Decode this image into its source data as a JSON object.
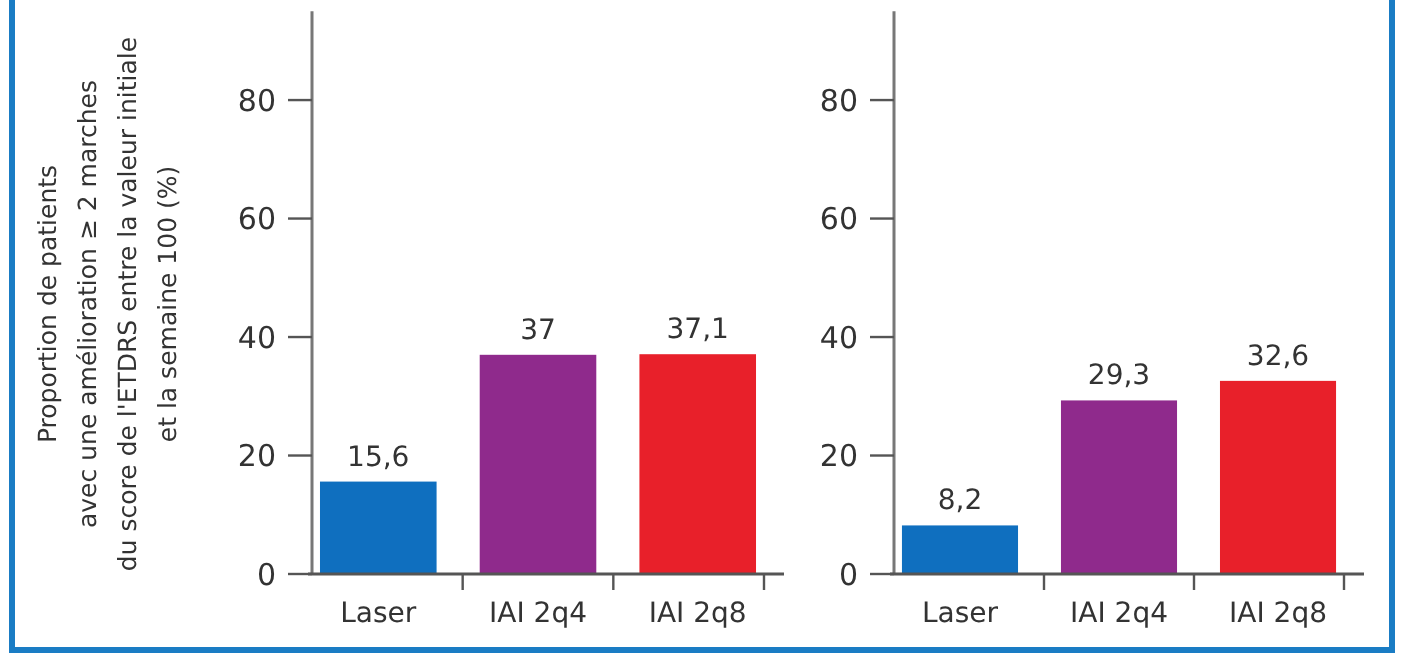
{
  "chart_data": [
    {
      "type": "bar",
      "ylabel": "Proportion de patients\navec une amélioration ≥ 2 marches\ndu score de l'ETDRS entre la valeur initiale\net la semaine 100 (%)",
      "categories": [
        "Laser",
        "IAI 2q4",
        "IAI 2q8"
      ],
      "values": [
        15.6,
        37,
        37.1
      ],
      "value_labels": [
        "15,6",
        "37",
        "37,1"
      ],
      "colors": [
        "#0f6fbf",
        "#8f2a8c",
        "#e8202a"
      ],
      "ylim": [
        0,
        95
      ],
      "yticks": [
        0,
        20,
        40,
        60,
        80
      ]
    },
    {
      "type": "bar",
      "categories": [
        "Laser",
        "IAI 2q4",
        "IAI 2q8"
      ],
      "values": [
        8.2,
        29.3,
        32.6
      ],
      "value_labels": [
        "8,2",
        "29,3",
        "32,6"
      ],
      "colors": [
        "#0f6fbf",
        "#8f2a8c",
        "#e8202a"
      ],
      "ylim": [
        0,
        95
      ],
      "yticks": [
        0,
        20,
        40,
        60,
        80
      ]
    }
  ]
}
